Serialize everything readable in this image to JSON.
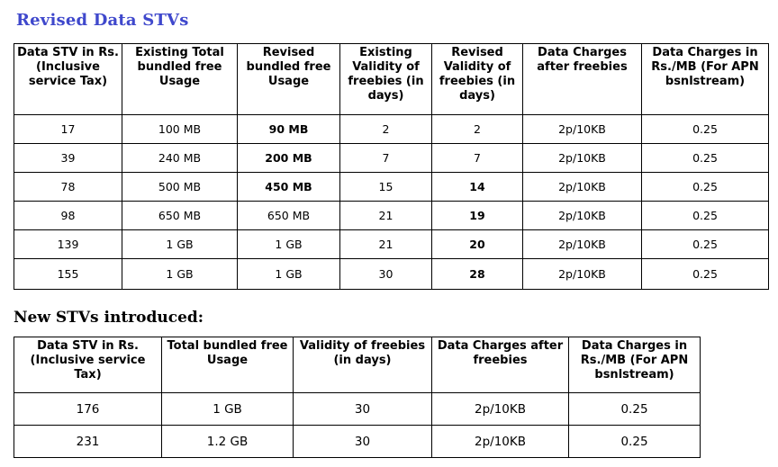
{
  "revised": {
    "title": "Revised Data STVs",
    "headers": [
      "Data STV in Rs. (Inclusive service Tax)",
      "Existing Total bundled free Usage",
      "Revised bundled free Usage",
      "Existing Validity of freebies (in days)",
      "Revised Validity of freebies (in days)",
      "Data Charges after freebies",
      "Data Charges in Rs./MB (For APN bsnlstream)"
    ],
    "rows": [
      [
        "17",
        "100 MB",
        "90 MB",
        "2",
        "2",
        "2p/10KB",
        "0.25"
      ],
      [
        "39",
        "240 MB",
        "200 MB",
        "7",
        "7",
        "2p/10KB",
        "0.25"
      ],
      [
        "78",
        "500 MB",
        "450 MB",
        "15",
        "14",
        "2p/10KB",
        "0.25"
      ],
      [
        "98",
        "650 MB",
        "650 MB",
        "21",
        "19",
        "2p/10KB",
        "0.25"
      ],
      [
        "139",
        "1 GB",
        "1 GB",
        "21",
        "20",
        "2p/10KB",
        "0.25"
      ],
      [
        "155",
        "1 GB",
        "1 GB",
        "30",
        "28",
        "2p/10KB",
        "0.25"
      ]
    ]
  },
  "new_stvs": {
    "title": "New STVs introduced:",
    "headers": [
      "Data STV in Rs. (Inclusive service Tax)",
      "Total bundled free Usage",
      "Validity of freebies (in days)",
      "Data Charges after freebies",
      "Data Charges in Rs./MB (For APN bsnlstream)"
    ],
    "rows": [
      [
        "176",
        "1 GB",
        "30",
        "2p/10KB",
        "0.25"
      ],
      [
        "231",
        "1.2 GB",
        "30",
        "2p/10KB",
        "0.25"
      ]
    ]
  },
  "colors": {
    "heading_blue": "#3f48cc"
  }
}
